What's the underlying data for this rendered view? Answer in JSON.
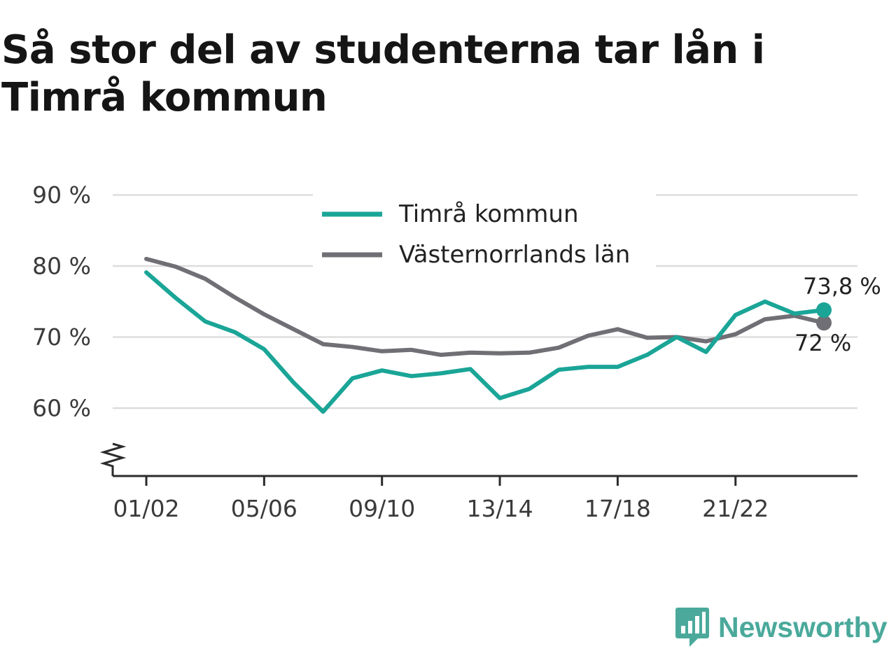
{
  "title": "Så stor del av studenterna tar lån i Timrå kommun",
  "brand": {
    "name": "Newsworthy",
    "icon": "newsworthy-logo-icon",
    "color": "#4aa99b"
  },
  "chart_data": {
    "type": "line",
    "title": "Så stor del av studenterna tar lån i Timrå kommun",
    "xlabel": "",
    "ylabel": "",
    "ylim": [
      50.5,
      90
    ],
    "axis_break": true,
    "grid": true,
    "legend_position": "top-center",
    "x": [
      "01/02",
      "02/03",
      "03/04",
      "04/05",
      "05/06",
      "06/07",
      "07/08",
      "08/09",
      "09/10",
      "10/11",
      "11/12",
      "12/13",
      "13/14",
      "14/15",
      "15/16",
      "16/17",
      "17/18",
      "18/19",
      "19/20",
      "20/21",
      "21/22",
      "22/23",
      "23/24",
      "24/25"
    ],
    "x_ticks": [
      "01/02",
      "05/06",
      "09/10",
      "13/14",
      "17/18",
      "21/22"
    ],
    "y_ticks": [
      {
        "value": 60,
        "label": "60 %"
      },
      {
        "value": 70,
        "label": "70 %"
      },
      {
        "value": 80,
        "label": "80 %"
      },
      {
        "value": 90,
        "label": "90 %"
      }
    ],
    "series": [
      {
        "name": "Timrå kommun",
        "color": "#1aa597",
        "values": [
          79.1,
          75.5,
          72.2,
          70.7,
          68.3,
          63.6,
          59.5,
          64.2,
          65.3,
          64.5,
          64.9,
          65.5,
          61.4,
          62.7,
          65.4,
          65.8,
          65.8,
          67.5,
          70.0,
          67.9,
          73.1,
          75.0,
          73.3,
          73.8
        ],
        "end_label": "73,8 %"
      },
      {
        "name": "Västernorrlands län",
        "color": "#6f6f75",
        "values": [
          81.0,
          79.9,
          78.2,
          75.6,
          73.2,
          71.1,
          69.0,
          68.6,
          68.0,
          68.2,
          67.5,
          67.8,
          67.7,
          67.8,
          68.5,
          70.2,
          71.1,
          69.9,
          70.0,
          69.4,
          70.4,
          72.5,
          73.0,
          72.0
        ],
        "end_label": "72 %"
      }
    ]
  }
}
